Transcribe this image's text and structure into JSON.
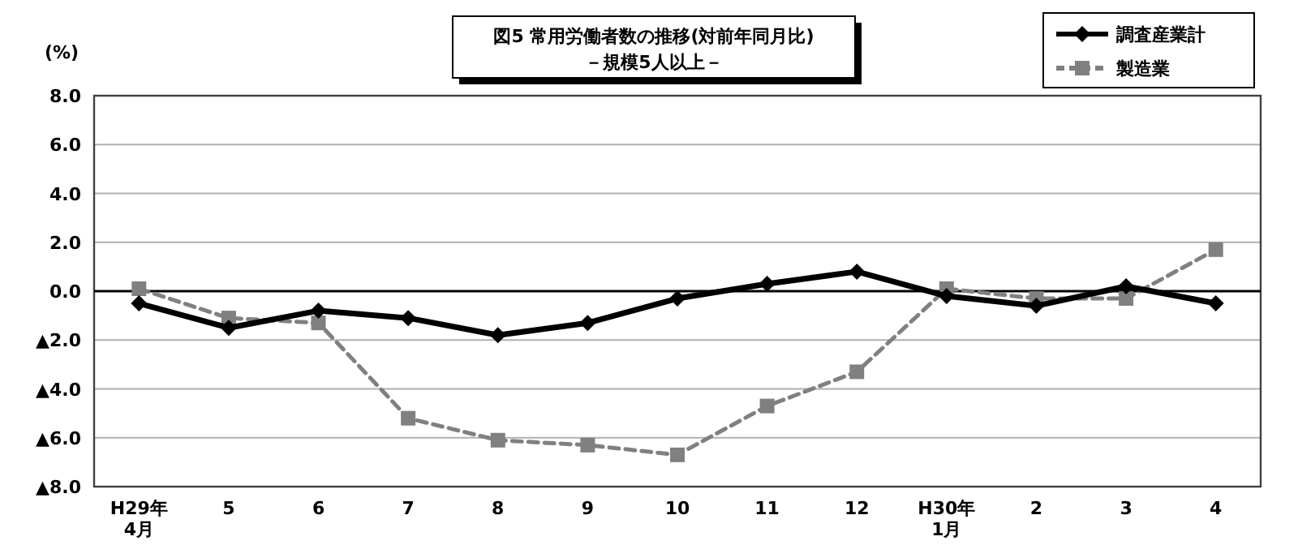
{
  "chart_data": {
    "type": "line",
    "title": "図5 常用労働者数の推移(対前年同月比)",
    "subtitle": "－規模5人以上－",
    "ylabel": "(%)",
    "categories": [
      "H29年\n4月",
      "5",
      "6",
      "7",
      "8",
      "9",
      "10",
      "11",
      "12",
      "H30年\n1月",
      "2",
      "3",
      "4"
    ],
    "ylim": [
      -8,
      8
    ],
    "yticks": [
      {
        "value": -8,
        "label": "▲8.0"
      },
      {
        "value": -6,
        "label": "▲6.0"
      },
      {
        "value": -4,
        "label": "▲4.0"
      },
      {
        "value": -2,
        "label": "▲2.0"
      },
      {
        "value": 0,
        "label": "0.0"
      },
      {
        "value": 2,
        "label": "2.0"
      },
      {
        "value": 4,
        "label": "4.0"
      },
      {
        "value": 6,
        "label": "6.0"
      },
      {
        "value": 8,
        "label": "8.0"
      }
    ],
    "grid": "y",
    "legend": "top right",
    "ref_lines": [
      {
        "axis": "y",
        "value": 0,
        "color": "#000000"
      }
    ],
    "series": [
      {
        "name": "調査産業計",
        "color": "#000000",
        "marker": "diamond",
        "line_style": "solid",
        "values": [
          -0.5,
          -1.5,
          -0.8,
          -1.1,
          -1.8,
          -1.3,
          -0.3,
          0.3,
          0.8,
          -0.2,
          -0.6,
          0.2,
          -0.5
        ]
      },
      {
        "name": "製造業",
        "color": "#808080",
        "marker": "square",
        "line_style": "dashed",
        "values": [
          0.1,
          -1.1,
          -1.3,
          -5.2,
          -6.1,
          -6.3,
          -6.7,
          -4.7,
          -3.3,
          0.1,
          -0.3,
          -0.3,
          1.7
        ]
      }
    ]
  }
}
